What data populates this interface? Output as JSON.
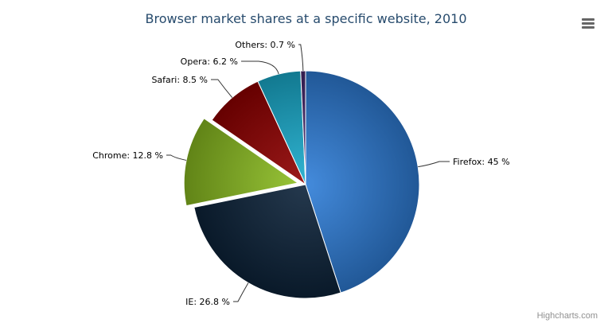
{
  "chart_data": {
    "type": "pie",
    "title": "Browser market shares at a specific website, 2010",
    "unit": "%",
    "slices": [
      {
        "name": "Firefox",
        "value": 45.0,
        "color": "#2f7ed8"
      },
      {
        "name": "IE",
        "value": 26.8,
        "color": "#0d233a"
      },
      {
        "name": "Chrome",
        "value": 12.8,
        "color": "#8bbc21",
        "sliced": true
      },
      {
        "name": "Safari",
        "value": 8.5,
        "color": "#910000"
      },
      {
        "name": "Opera",
        "value": 6.2,
        "color": "#1aadce"
      },
      {
        "name": "Others",
        "value": 0.7,
        "color": "#492970"
      }
    ],
    "data_labels": [
      "Firefox: 45 %",
      "IE: 26.8 %",
      "Chrome: 12.8 %",
      "Safari: 8.5 %",
      "Opera: 6.2 %",
      "Others: 0.7 %"
    ]
  },
  "menu_icon": "hamburger-menu-icon",
  "credits": "Highcharts.com"
}
